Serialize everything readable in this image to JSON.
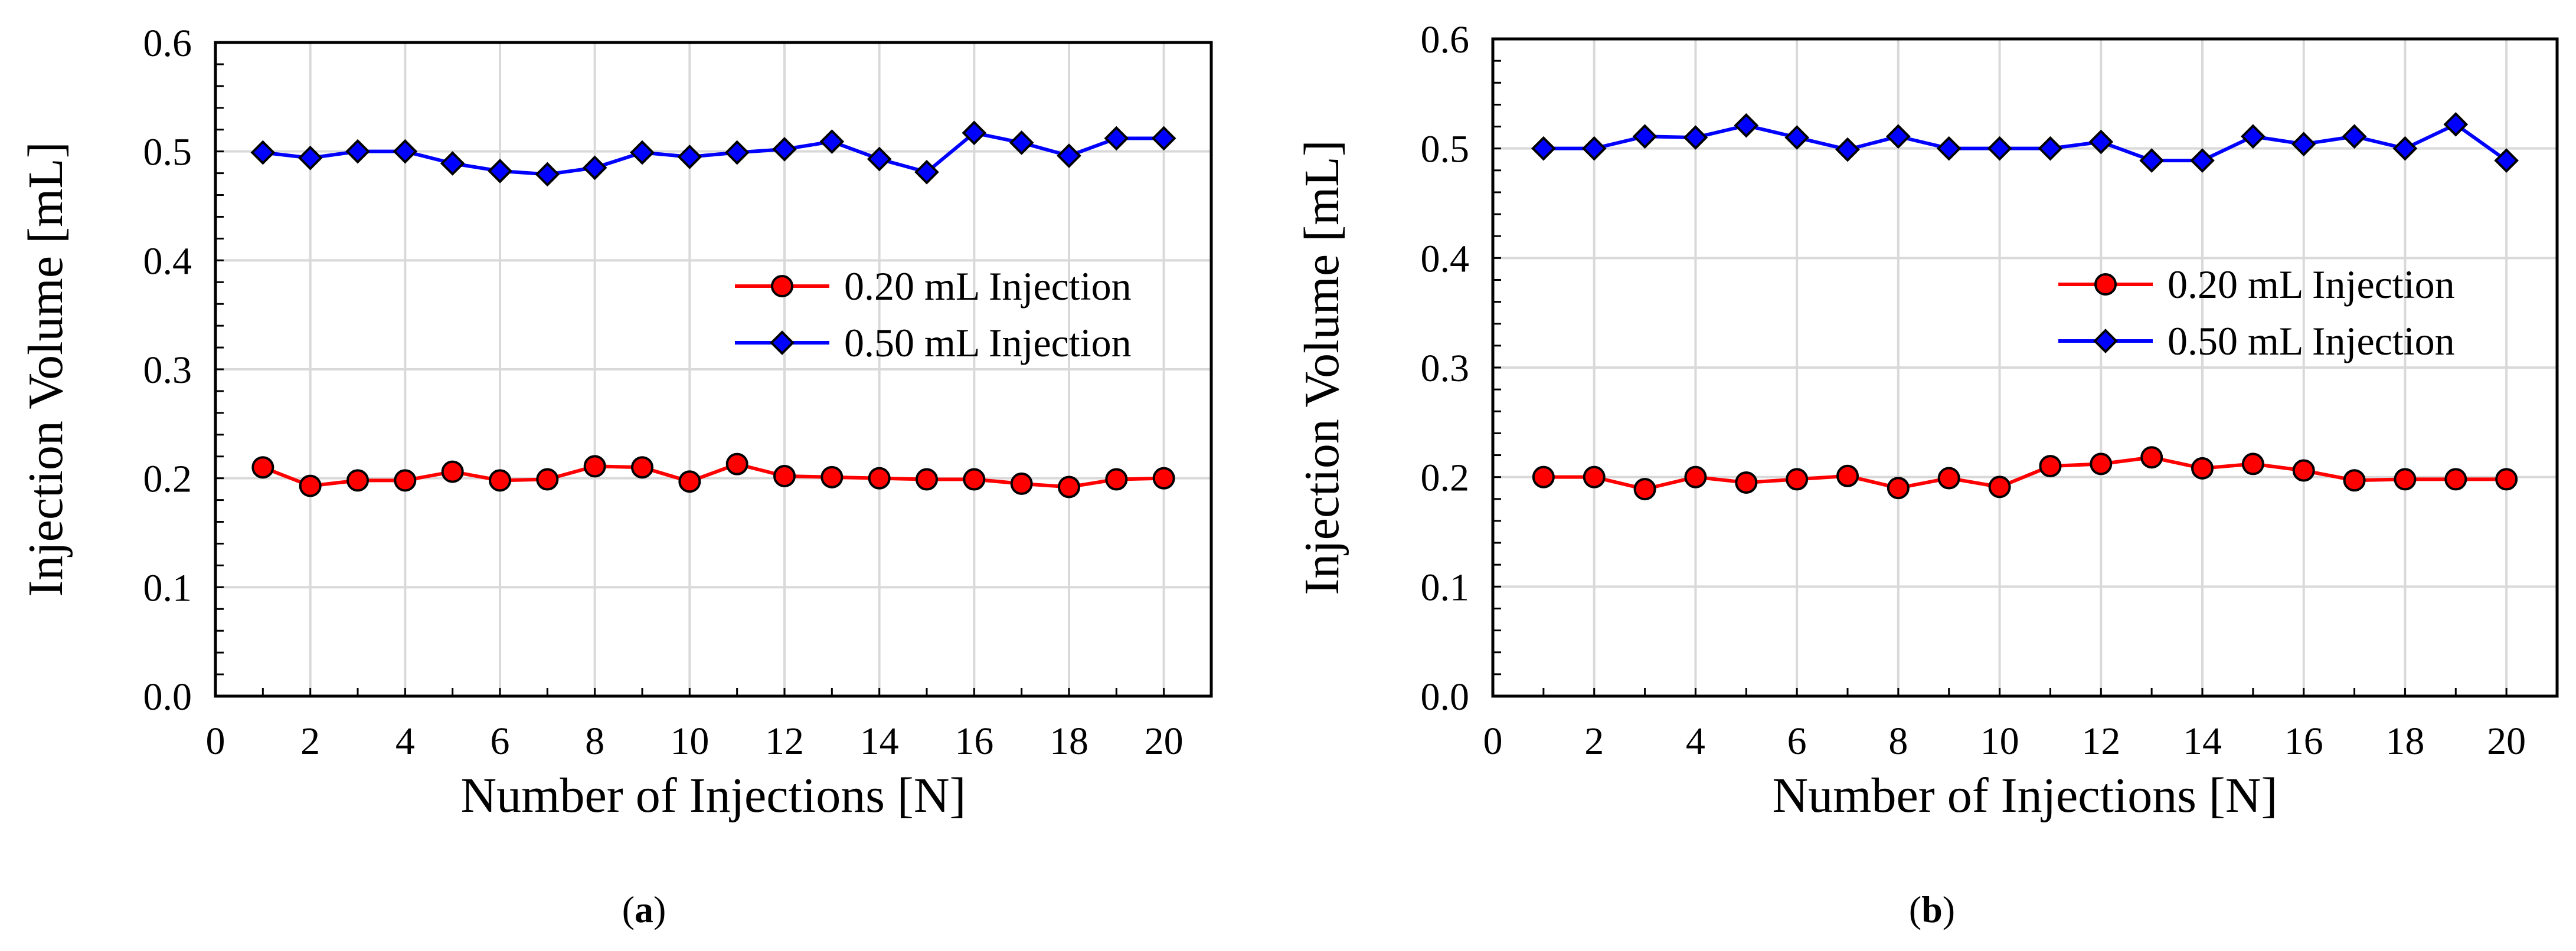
{
  "chart_data": [
    {
      "type": "line",
      "panel": "a",
      "caption_letter": "a",
      "xlabel": "Number of Injections [N]",
      "ylabel": "Injection Volume [mL]",
      "xlim": [
        0,
        21
      ],
      "ylim": [
        0,
        0.6
      ],
      "xticks": [
        0,
        2,
        4,
        6,
        8,
        10,
        12,
        14,
        16,
        18,
        20
      ],
      "yticks": [
        "0.0",
        "0.1",
        "0.2",
        "0.3",
        "0.4",
        "0.5",
        "0.6"
      ],
      "grid": true,
      "legend_position": "middle-right",
      "x": [
        1,
        2,
        3,
        4,
        5,
        6,
        7,
        8,
        9,
        10,
        11,
        12,
        13,
        14,
        15,
        16,
        17,
        18,
        19,
        20
      ],
      "series": [
        {
          "name": "0.20 mL Injection",
          "marker": "circle",
          "color": "#ff0000",
          "line_color": "#ff0000",
          "values": [
            0.21,
            0.193,
            0.198,
            0.198,
            0.206,
            0.198,
            0.199,
            0.211,
            0.21,
            0.197,
            0.213,
            0.202,
            0.201,
            0.2,
            0.199,
            0.199,
            0.195,
            0.192,
            0.199,
            0.2
          ]
        },
        {
          "name": "0.50 mL Injection",
          "marker": "diamond",
          "color": "#0000ff",
          "line_color": "#0000ff",
          "values": [
            0.499,
            0.494,
            0.5,
            0.5,
            0.489,
            0.482,
            0.479,
            0.485,
            0.499,
            0.495,
            0.499,
            0.502,
            0.509,
            0.493,
            0.481,
            0.517,
            0.508,
            0.496,
            0.512,
            0.512
          ]
        }
      ]
    },
    {
      "type": "line",
      "panel": "b",
      "caption_letter": "b",
      "xlabel": "Number of Injections [N]",
      "ylabel": "Injection Volume [mL]",
      "xlim": [
        0,
        21
      ],
      "ylim": [
        0,
        0.6
      ],
      "xticks": [
        0,
        2,
        4,
        6,
        8,
        10,
        12,
        14,
        16,
        18,
        20
      ],
      "yticks": [
        "0.0",
        "0.1",
        "0.2",
        "0.3",
        "0.4",
        "0.5",
        "0.6"
      ],
      "grid": true,
      "legend_position": "middle-right",
      "x": [
        1,
        2,
        3,
        4,
        5,
        6,
        7,
        8,
        9,
        10,
        11,
        12,
        13,
        14,
        15,
        16,
        17,
        18,
        19,
        20
      ],
      "series": [
        {
          "name": "0.20 mL Injection",
          "marker": "circle",
          "color": "#ff0000",
          "line_color": "#ff0000",
          "values": [
            0.2,
            0.2,
            0.189,
            0.2,
            0.195,
            0.198,
            0.201,
            0.19,
            0.199,
            0.191,
            0.21,
            0.212,
            0.218,
            0.208,
            0.212,
            0.206,
            0.197,
            0.198,
            0.198,
            0.198
          ]
        },
        {
          "name": "0.50 mL Injection",
          "marker": "diamond",
          "color": "#0000ff",
          "line_color": "#0000ff",
          "values": [
            0.5,
            0.5,
            0.511,
            0.51,
            0.521,
            0.51,
            0.499,
            0.511,
            0.5,
            0.5,
            0.5,
            0.506,
            0.489,
            0.489,
            0.511,
            0.504,
            0.511,
            0.5,
            0.522,
            0.489
          ]
        }
      ]
    }
  ]
}
